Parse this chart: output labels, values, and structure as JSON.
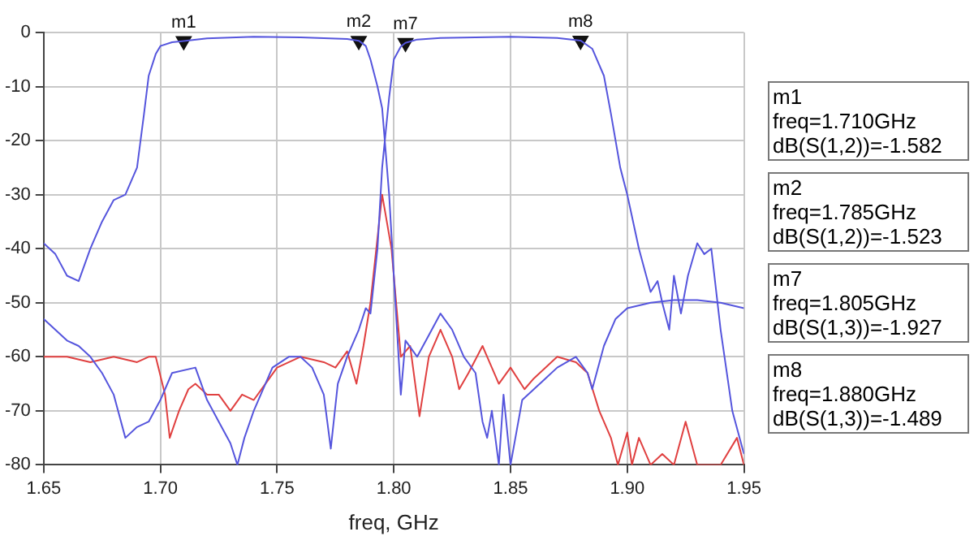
{
  "chart_data": {
    "type": "line",
    "xlabel": "freq, GHz",
    "xlim": [
      1.65,
      1.95
    ],
    "xticks": [
      1.65,
      {
        "value": 1.7,
        "label": "1.70"
      },
      1.75,
      {
        "value": 1.8,
        "label": "1.80"
      },
      1.85,
      {
        "value": 1.9,
        "label": "1.90"
      },
      1.95
    ],
    "ylim": [
      -80,
      0
    ],
    "yticks": [
      -80,
      -70,
      -60,
      -50,
      -40,
      -30,
      -20,
      -10,
      0
    ],
    "grid": true,
    "legend": false,
    "marker": "none",
    "line_style": "solid",
    "series": [
      {
        "color": "#5555dd",
        "x": [
          1.65,
          1.655,
          1.66,
          1.665,
          1.67,
          1.675,
          1.68,
          1.685,
          1.688,
          1.69,
          1.693,
          1.695,
          1.698,
          1.7,
          1.705,
          1.71,
          1.72,
          1.74,
          1.76,
          1.78,
          1.785,
          1.788,
          1.79,
          1.793,
          1.795,
          1.798,
          1.8,
          1.803,
          1.805,
          1.81,
          1.815,
          1.82,
          1.825,
          1.83,
          1.835,
          1.838,
          1.84,
          1.842,
          1.845,
          1.847,
          1.85,
          1.855,
          1.86,
          1.865,
          1.87,
          1.878,
          1.883,
          1.885,
          1.89,
          1.895,
          1.9,
          1.91,
          1.92,
          1.93,
          1.94,
          1.95
        ],
        "values": [
          -39,
          -41,
          -45,
          -46,
          -40,
          -35,
          -31,
          -30,
          -27,
          -25,
          -15,
          -8,
          -4,
          -2.5,
          -1.8,
          -1.582,
          -1.1,
          -0.8,
          -0.9,
          -1.2,
          -1.523,
          -2.5,
          -5,
          -10,
          -14,
          -30,
          -45,
          -67,
          -57,
          -60,
          -56,
          -52,
          -55,
          -60,
          -63,
          -72,
          -75,
          -70,
          -80,
          -67,
          -80,
          -68,
          -66,
          -64,
          -62,
          -60,
          -63,
          -66,
          -58,
          -53,
          -51,
          -50,
          -49.5,
          -49.5,
          -50,
          -51
        ]
      },
      {
        "color": "#5555dd",
        "x": [
          1.65,
          1.655,
          1.66,
          1.665,
          1.67,
          1.675,
          1.68,
          1.685,
          1.69,
          1.695,
          1.7,
          1.705,
          1.715,
          1.72,
          1.725,
          1.73,
          1.733,
          1.736,
          1.74,
          1.745,
          1.748,
          1.755,
          1.76,
          1.765,
          1.77,
          1.773,
          1.776,
          1.78,
          1.785,
          1.788,
          1.79,
          1.793,
          1.795,
          1.798,
          1.8,
          1.803,
          1.805,
          1.81,
          1.82,
          1.85,
          1.87,
          1.88,
          1.885,
          1.89,
          1.893,
          1.897,
          1.9,
          1.905,
          1.91,
          1.913,
          1.915,
          1.918,
          1.92,
          1.923,
          1.926,
          1.93,
          1.933,
          1.936,
          1.94,
          1.945,
          1.95
        ],
        "values": [
          -53,
          -55,
          -57,
          -58,
          -60,
          -63,
          -67,
          -75,
          -73,
          -72,
          -68,
          -63,
          -62,
          -68,
          -72,
          -76,
          -80,
          -75,
          -70,
          -65,
          -62,
          -60,
          -60,
          -62,
          -67,
          -77,
          -65,
          -60,
          -55,
          -51,
          -52,
          -40,
          -25,
          -12,
          -5,
          -2.6,
          -1.927,
          -1.3,
          -1,
          -0.8,
          -1,
          -1.489,
          -3,
          -8,
          -15,
          -25,
          -30,
          -40,
          -48,
          -46,
          -50,
          -55,
          -45,
          -52,
          -45,
          -39,
          -41,
          -40,
          -55,
          -70,
          -78
        ]
      },
      {
        "color": "#e04040",
        "x": [
          1.65,
          1.66,
          1.67,
          1.68,
          1.69,
          1.695,
          1.698,
          1.702,
          1.704,
          1.708,
          1.712,
          1.715,
          1.72,
          1.725,
          1.73,
          1.735,
          1.74,
          1.745,
          1.75,
          1.76,
          1.77,
          1.775,
          1.78,
          1.784,
          1.787,
          1.79,
          1.795,
          1.799,
          1.803,
          1.807,
          1.811,
          1.815,
          1.82,
          1.825,
          1.828,
          1.832,
          1.838,
          1.84,
          1.845,
          1.85,
          1.856,
          1.86,
          1.87,
          1.878,
          1.883,
          1.888,
          1.893,
          1.896,
          1.9,
          1.902,
          1.905,
          1.91,
          1.915,
          1.92,
          1.925,
          1.93,
          1.94,
          1.947,
          1.95
        ],
        "values": [
          -60,
          -60,
          -61,
          -60,
          -61,
          -60,
          -60,
          -67,
          -75,
          -70,
          -66,
          -65,
          -67,
          -67,
          -70,
          -67,
          -68,
          -65,
          -62,
          -60,
          -61,
          -62,
          -59,
          -65,
          -58,
          -50,
          -30,
          -40,
          -60,
          -58,
          -71,
          -60,
          -55,
          -60,
          -66,
          -63,
          -58,
          -60,
          -65,
          -62,
          -66,
          -64,
          -60,
          -61,
          -63,
          -70,
          -75,
          -80,
          -74,
          -80,
          -75,
          -80,
          -78,
          -80,
          -72,
          -80,
          -80,
          -75,
          -80
        ]
      },
      {
        "type": "scatter",
        "color": "#111111",
        "marker": "triangle",
        "x": [
          1.71,
          1.785,
          1.805,
          1.88
        ],
        "values": [
          -1.582,
          -1.523,
          -1.927,
          -1.489
        ]
      }
    ],
    "annotations": [
      {
        "text": "m1",
        "x": 1.71,
        "y": -1.582
      },
      {
        "text": "m2",
        "x": 1.785,
        "y": -1.523
      },
      {
        "text": "m7",
        "x": 1.805,
        "y": -1.927
      },
      {
        "text": "m8",
        "x": 1.88,
        "y": -1.489
      },
      "m1\nfreq=1.710GHz\ndB(S(1,2))=-1.582",
      "m2\nfreq=1.785GHz\ndB(S(1,2))=-1.523",
      "m7\nfreq=1.805GHz\ndB(S(1,3))=-1.927",
      "m8\nfreq=1.880GHz\ndB(S(1,3))=-1.489"
    ]
  }
}
